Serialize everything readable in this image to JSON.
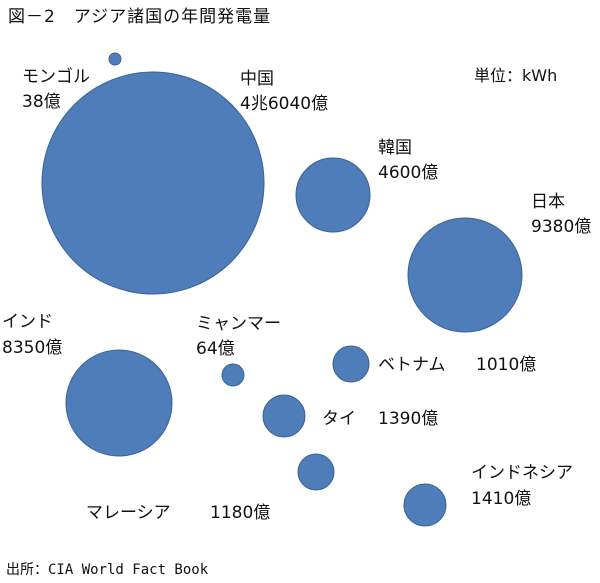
{
  "title": "図－2　アジア諸国の年間発電量",
  "unit_label": "単位：kWh",
  "source": "出所：CIA World Fact Book",
  "chart_data": {
    "type": "bubble",
    "title": "図－2　アジア諸国の年間発電量",
    "unit": "kWh",
    "series": [
      {
        "name": "モンゴル",
        "value_label": "38億",
        "value": 38
      },
      {
        "name": "中国",
        "value_label": "4兆6040億",
        "value": 46040
      },
      {
        "name": "韓国",
        "value_label": "4600億",
        "value": 4600
      },
      {
        "name": "日本",
        "value_label": "9380億",
        "value": 9380
      },
      {
        "name": "インド",
        "value_label": "8350億",
        "value": 8350
      },
      {
        "name": "ミャンマー",
        "value_label": "64億",
        "value": 64
      },
      {
        "name": "ベトナム",
        "value_label": "1010億",
        "value": 1010
      },
      {
        "name": "タイ",
        "value_label": "1390億",
        "value": 1390
      },
      {
        "name": "マレーシア",
        "value_label": "1180億",
        "value": 1180
      },
      {
        "name": "インドネシア",
        "value_label": "1410億",
        "value": 1410
      }
    ],
    "bubble_color": "#4F7DBA",
    "bubble_stroke": "#3A6396"
  }
}
